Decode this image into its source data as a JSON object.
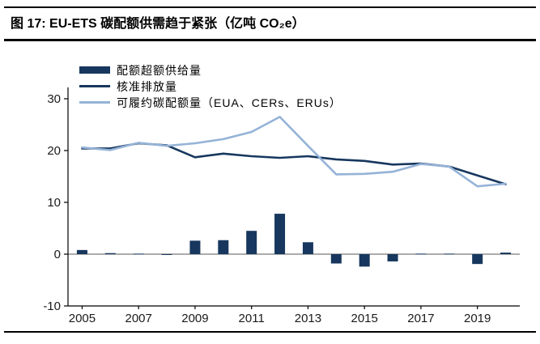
{
  "header": {
    "title": "图 17:  EU-ETS 碳配额供需趋于紧张（亿吨 CO₂e）"
  },
  "chart_data": {
    "type": "bar",
    "subtype": "combo-bar-line",
    "unit": "亿吨 CO₂e",
    "x": [
      2005,
      2006,
      2007,
      2008,
      2009,
      2010,
      2011,
      2012,
      2013,
      2014,
      2015,
      2016,
      2017,
      2018,
      2019,
      2020
    ],
    "bar_series": {
      "name": "配额超额供给量",
      "color": "#17375E",
      "values": [
        0.8,
        0.2,
        0.1,
        -0.1,
        2.6,
        2.7,
        4.5,
        7.8,
        2.3,
        -1.8,
        -2.4,
        -1.4,
        0.1,
        0.1,
        -1.9,
        0.3
      ]
    },
    "line_series": [
      {
        "name": "核准排放量",
        "color": "#17375E",
        "values": [
          20.4,
          20.4,
          21.4,
          21.0,
          18.7,
          19.4,
          18.9,
          18.6,
          18.9,
          18.3,
          18.0,
          17.3,
          17.5,
          16.9,
          15.2,
          13.5
        ]
      },
      {
        "name": "可履约碳配额量（EUA、CERs、ERUs）",
        "color": "#95B3D7",
        "values": [
          20.6,
          20.1,
          21.5,
          20.9,
          21.4,
          22.2,
          23.6,
          26.5,
          20.9,
          15.4,
          15.5,
          15.9,
          17.4,
          16.9,
          13.1,
          13.6
        ]
      }
    ],
    "ylim": [
      -10,
      30
    ],
    "yticks": [
      -10,
      0,
      10,
      20,
      30
    ],
    "xticks": [
      2005,
      2007,
      2009,
      2011,
      2013,
      2015,
      2017,
      2019
    ],
    "axis_color": "#000000",
    "zero_line_color": "#595959",
    "legend_position": "top-left",
    "grid": false
  }
}
